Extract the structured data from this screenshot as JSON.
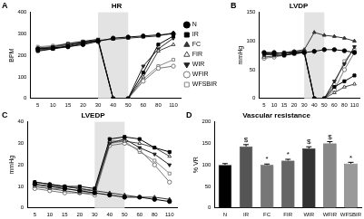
{
  "chart_data": [
    {
      "type": "line",
      "panel": "A",
      "title": "HR",
      "y_label": "BPM",
      "categories": [
        "5",
        "10",
        "15",
        "20",
        "30",
        "40",
        "50",
        "60",
        "80",
        "110"
      ],
      "shade": [
        "30",
        "50"
      ],
      "ylim": [
        0,
        400
      ],
      "yticks": [
        0,
        100,
        200,
        300,
        400
      ],
      "grid": false,
      "legend": "right",
      "series": [
        {
          "name": "N",
          "color": "#000000",
          "marker": "circle",
          "values": [
            230,
            235,
            240,
            250,
            265,
            280,
            285,
            290,
            295,
            300
          ]
        },
        {
          "name": "IR",
          "color": "#000000",
          "marker": "square",
          "values": [
            220,
            230,
            245,
            260,
            270,
            0,
            0,
            120,
            250,
            290
          ]
        },
        {
          "name": "FC",
          "color": "#333333",
          "marker": "triangle",
          "values": [
            225,
            230,
            240,
            255,
            270,
            275,
            280,
            285,
            290,
            305
          ]
        },
        {
          "name": "FIR",
          "color": "#444444",
          "marker": "triangle-open",
          "values": [
            235,
            240,
            250,
            260,
            270,
            0,
            0,
            100,
            220,
            250
          ]
        },
        {
          "name": "WIR",
          "color": "#222222",
          "marker": "triangle-down",
          "values": [
            230,
            240,
            255,
            265,
            275,
            0,
            0,
            150,
            230,
            280
          ]
        },
        {
          "name": "WFIR",
          "color": "#777777",
          "marker": "circle-open",
          "values": [
            225,
            235,
            250,
            255,
            265,
            0,
            0,
            80,
            140,
            150
          ]
        },
        {
          "name": "WFSBIR",
          "color": "#888888",
          "marker": "square-open",
          "values": [
            240,
            245,
            255,
            265,
            270,
            0,
            0,
            90,
            150,
            180
          ]
        }
      ]
    },
    {
      "type": "line",
      "panel": "B",
      "title": "LVDP",
      "y_label": "mmHg",
      "categories": [
        "5",
        "10",
        "15",
        "20",
        "30",
        "40",
        "50",
        "60",
        "80",
        "110"
      ],
      "shade": [
        "30",
        "50"
      ],
      "ylim": [
        0,
        150
      ],
      "yticks": [
        0,
        50,
        100,
        150
      ],
      "grid": false,
      "series": [
        {
          "color": "#000000",
          "marker": "circle",
          "values": [
            80,
            80,
            78,
            80,
            80,
            82,
            85,
            85,
            83,
            80
          ]
        },
        {
          "color": "#000000",
          "marker": "square",
          "values": [
            78,
            76,
            75,
            78,
            80,
            0,
            0,
            20,
            30,
            40
          ]
        },
        {
          "color": "#333333",
          "marker": "triangle",
          "values": [
            75,
            78,
            80,
            82,
            85,
            115,
            110,
            108,
            105,
            100
          ]
        },
        {
          "color": "#444444",
          "marker": "triangle-open",
          "values": [
            72,
            74,
            76,
            78,
            80,
            0,
            0,
            10,
            20,
            25
          ]
        },
        {
          "color": "#222222",
          "marker": "triangle-down",
          "values": [
            80,
            78,
            80,
            82,
            82,
            0,
            0,
            30,
            60,
            90
          ]
        },
        {
          "color": "#777777",
          "marker": "circle-open",
          "values": [
            70,
            72,
            75,
            78,
            80,
            0,
            0,
            15,
            50,
            80
          ]
        },
        {
          "color": "#888888",
          "marker": "square-open",
          "values": [
            76,
            78,
            80,
            80,
            82,
            0,
            0,
            25,
            65,
            85
          ]
        }
      ]
    },
    {
      "type": "line",
      "panel": "C",
      "title": "LVEDP",
      "y_label": "mmHg",
      "categories": [
        "5",
        "10",
        "15",
        "20",
        "30",
        "40",
        "50",
        "60",
        "80",
        "110"
      ],
      "shade": [
        "30",
        "50"
      ],
      "ylim": [
        0,
        40
      ],
      "yticks": [
        0,
        10,
        20,
        30,
        40
      ],
      "grid": false,
      "series": [
        {
          "color": "#000000",
          "marker": "circle",
          "values": [
            11,
            10,
            9,
            8,
            7,
            6,
            5,
            5,
            4,
            3
          ]
        },
        {
          "color": "#000000",
          "marker": "square",
          "values": [
            12,
            11,
            10,
            10,
            9,
            32,
            33,
            32,
            28,
            26
          ]
        },
        {
          "color": "#333333",
          "marker": "triangle",
          "values": [
            12,
            11,
            10,
            9,
            8,
            7,
            6,
            5,
            5,
            4
          ]
        },
        {
          "color": "#444444",
          "marker": "triangle-open",
          "values": [
            10,
            9,
            8,
            7,
            7,
            31,
            31,
            30,
            28,
            24
          ]
        },
        {
          "color": "#222222",
          "marker": "triangle-down",
          "values": [
            11,
            10,
            10,
            9,
            8,
            30,
            32,
            28,
            25,
            20
          ]
        },
        {
          "color": "#777777",
          "marker": "circle-open",
          "values": [
            9,
            8,
            7,
            7,
            6,
            29,
            30,
            27,
            20,
            12
          ]
        },
        {
          "color": "#888888",
          "marker": "square-open",
          "values": [
            10,
            9,
            9,
            8,
            8,
            30,
            31,
            26,
            22,
            16
          ]
        }
      ]
    },
    {
      "type": "bar",
      "panel": "D",
      "title": "Vascular resistance",
      "y_label": "% VR",
      "categories": [
        "N",
        "IR",
        "FC",
        "FIR",
        "WIR",
        "WFIR",
        "WFSBIR"
      ],
      "values": [
        100,
        143,
        100,
        110,
        138,
        150,
        103
      ],
      "errors": [
        3,
        4,
        2,
        3,
        4,
        4,
        3
      ],
      "annotations": [
        null,
        "$",
        "*",
        "*",
        "$",
        "$",
        "*"
      ],
      "colors": [
        "#000000",
        "#555555",
        "#777777",
        "#666666",
        "#333333",
        "#888888",
        "#999999"
      ],
      "ylim": [
        0,
        200
      ],
      "yticks": [
        0,
        50,
        100,
        150,
        200
      ],
      "grid": false
    }
  ]
}
